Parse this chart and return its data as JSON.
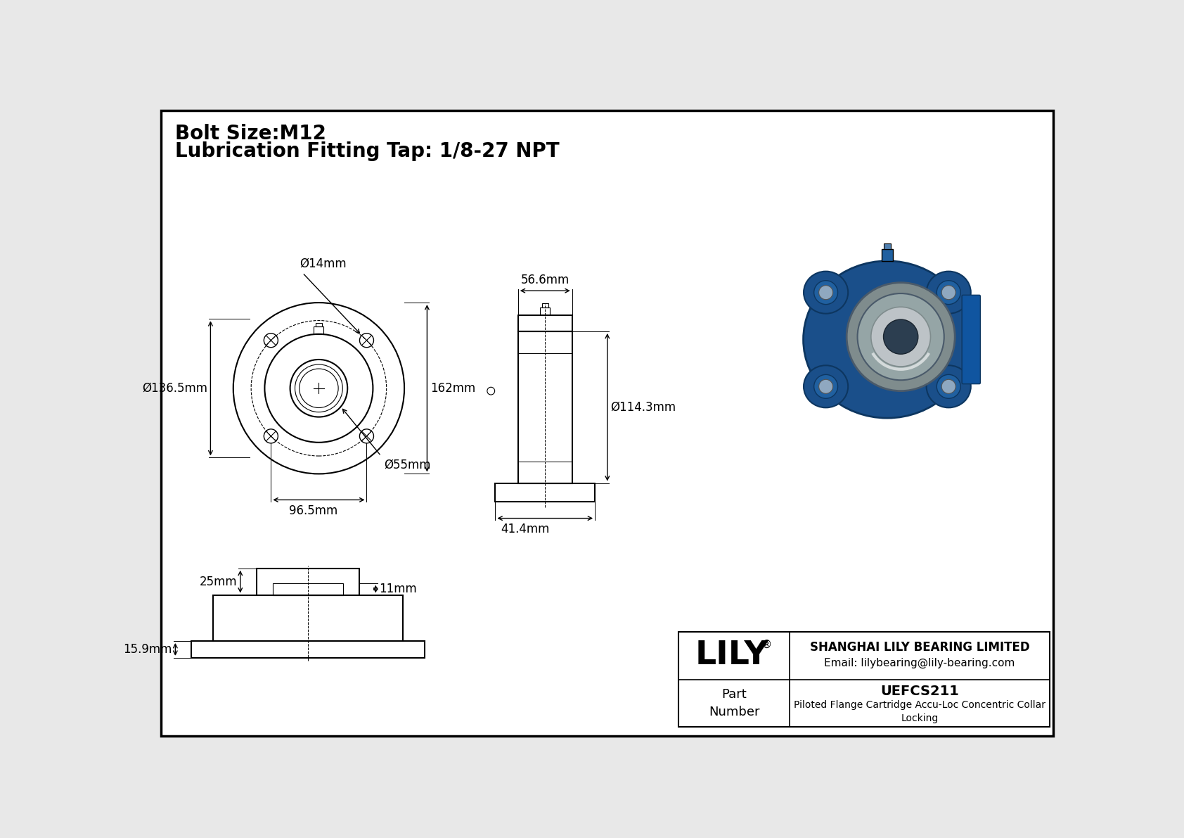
{
  "bg_color": "#e8e8e8",
  "border_color": "#000000",
  "title_line1": "Bolt Size:M12",
  "title_line2": "Lubrication Fitting Tap: 1/8-27 NPT",
  "title_fontsize": 20,
  "dim_fontsize": 12,
  "company": "SHANGHAI LILY BEARING LIMITED",
  "email": "Email: lilybearing@lily-bearing.com",
  "part_label": "Part\nNumber",
  "part_number": "UEFCS211",
  "part_desc": "Piloted Flange Cartridge Accu-Loc Concentric Collar\nLocking",
  "lily_text": "LILY",
  "dim_d14": "Ø14mm",
  "dim_d136": "Ø136.5mm",
  "dim_162": "162mm",
  "dim_96": "96.5mm",
  "dim_d55": "Ø55mm",
  "dim_56": "56.6mm",
  "dim_d114": "Ø114.3mm",
  "dim_41": "41.4mm",
  "dim_25": "25mm",
  "dim_11": "11mm",
  "dim_159": "15.9mm"
}
